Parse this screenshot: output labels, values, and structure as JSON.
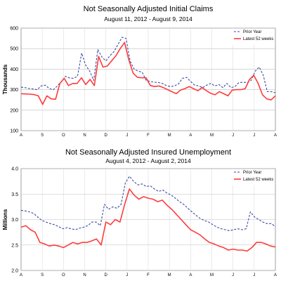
{
  "chart_data": [
    {
      "type": "line",
      "title": "Not Seasonally Adjusted Initial Claims",
      "subtitle": "August 11, 2012  -  August 9, 2014",
      "xlabel": "",
      "ylabel": "Thousands",
      "ylim": [
        100,
        600
      ],
      "yticks": [
        100,
        200,
        300,
        400,
        500,
        600
      ],
      "month_labels": [
        "A",
        "S",
        "O",
        "N",
        "D",
        "J",
        "F",
        "M",
        "A",
        "M",
        "J",
        "J",
        "A"
      ],
      "grid": true,
      "legend_position": "top-right",
      "series": [
        {
          "name": "Prior Year",
          "color": "#3a4aa0",
          "style": "dashed",
          "values": [
            312,
            310,
            305,
            303,
            300,
            318,
            322,
            305,
            300,
            318,
            340,
            365,
            357,
            355,
            365,
            478,
            420,
            390,
            345,
            495,
            460,
            440,
            465,
            485,
            520,
            555,
            550,
            440,
            400,
            390,
            385,
            345,
            340,
            336,
            335,
            330,
            320,
            315,
            318,
            328,
            355,
            360,
            340,
            322,
            318,
            310,
            322,
            330,
            318,
            325,
            310,
            330,
            310,
            315,
            335,
            336,
            335,
            345,
            390,
            410,
            370,
            290,
            290,
            285
          ]
        },
        {
          "name": "Latest 52 weeks",
          "color": "#ff3b3b",
          "style": "solid",
          "values": [
            280,
            279,
            278,
            276,
            270,
            228,
            270,
            255,
            253,
            330,
            355,
            320,
            330,
            330,
            358,
            325,
            350,
            320,
            462,
            410,
            415,
            440,
            465,
            500,
            530,
            445,
            380,
            360,
            358,
            358,
            320,
            315,
            318,
            310,
            300,
            290,
            280,
            298,
            305,
            315,
            305,
            295,
            310,
            295,
            282,
            275,
            290,
            280,
            270,
            298,
            300,
            300,
            305,
            350,
            370,
            330,
            275,
            255,
            250,
            270
          ]
        }
      ]
    },
    {
      "type": "line",
      "title": "Not Seasonally Adjusted Insured Unemployment",
      "subtitle": "August 4, 2012  -  August 2, 2014",
      "xlabel": "",
      "ylabel": "Millions",
      "ylim": [
        2.0,
        4.0
      ],
      "yticks": [
        2.0,
        2.5,
        3.0,
        3.5,
        4.0
      ],
      "month_labels": [
        "A",
        "S",
        "O",
        "N",
        "D",
        "J",
        "F",
        "M",
        "A",
        "M",
        "J",
        "J",
        "A"
      ],
      "grid": true,
      "legend_position": "top-right",
      "series": [
        {
          "name": "Prior Year",
          "color": "#3a4aa0",
          "style": "dashed",
          "values": [
            3.18,
            3.17,
            3.15,
            3.12,
            3.05,
            2.98,
            2.95,
            2.92,
            2.9,
            2.86,
            2.82,
            2.84,
            2.82,
            2.8,
            2.83,
            2.85,
            2.88,
            2.95,
            2.95,
            2.88,
            3.3,
            3.2,
            3.25,
            3.22,
            3.3,
            3.72,
            3.85,
            3.75,
            3.68,
            3.7,
            3.65,
            3.66,
            3.6,
            3.55,
            3.58,
            3.52,
            3.48,
            3.42,
            3.35,
            3.3,
            3.22,
            3.15,
            3.08,
            3.02,
            2.98,
            2.95,
            2.9,
            2.85,
            2.82,
            2.8,
            2.78,
            2.8,
            2.82,
            2.8,
            2.82,
            3.15,
            3.05,
            3.0,
            2.95,
            2.92,
            2.92,
            2.86
          ]
        },
        {
          "name": "Latest 52 weeks",
          "color": "#ff3b3b",
          "style": "solid",
          "values": [
            2.85,
            2.88,
            2.8,
            2.75,
            2.55,
            2.52,
            2.48,
            2.5,
            2.48,
            2.45,
            2.5,
            2.55,
            2.52,
            2.55,
            2.55,
            2.58,
            2.62,
            2.5,
            2.95,
            2.9,
            3.0,
            2.95,
            3.3,
            3.6,
            3.48,
            3.4,
            3.45,
            3.42,
            3.4,
            3.35,
            3.38,
            3.28,
            3.2,
            3.1,
            3.0,
            2.9,
            2.8,
            2.75,
            2.7,
            2.62,
            2.55,
            2.52,
            2.48,
            2.45,
            2.4,
            2.42,
            2.4,
            2.4,
            2.38,
            2.45,
            2.55,
            2.55,
            2.52,
            2.48,
            2.46
          ]
        }
      ]
    }
  ]
}
